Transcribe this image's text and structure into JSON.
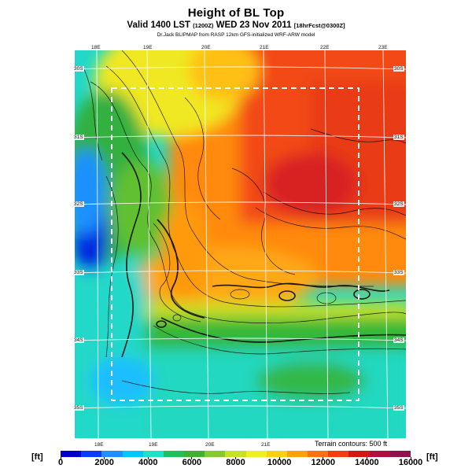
{
  "header": {
    "title": "Height of BL Top",
    "valid_line": "Valid 1400 LST",
    "valid_small": "(1200Z)",
    "valid_date": "WED 23 Nov 2011",
    "forecast_small": "[18hrFcst@0300Z]",
    "model_line": "Dr.Jack BLIPMAP from RASP 12km GFS-initialized WRF-ARW model"
  },
  "axes": {
    "lon_top": [
      "18E",
      "19E",
      "20E",
      "21E",
      "22E",
      "23E"
    ],
    "lon_bottom": [
      "18E",
      "19E",
      "20E",
      "21E"
    ],
    "lat_left": [
      "30S",
      "31S",
      "32S",
      "33S",
      "34S",
      "35S"
    ],
    "lat_right": [
      "30S",
      "31S",
      "32S",
      "33S",
      "34S",
      "35S"
    ]
  },
  "terrain_note": "Terrain contours: 500 ft",
  "colorbar": {
    "unit_left": "[ft]",
    "unit_right": "[ft]",
    "ticks": [
      "0",
      "2000",
      "4000",
      "6000",
      "8000",
      "10000",
      "12000",
      "14000",
      "16000"
    ],
    "colors": [
      "#0000c8",
      "#0a3cff",
      "#1e90ff",
      "#00c8ff",
      "#22e0c8",
      "#20c060",
      "#40b030",
      "#88c830",
      "#c8e028",
      "#f0f020",
      "#ffd010",
      "#ffa010",
      "#ff7010",
      "#f04010",
      "#d01818",
      "#b01040",
      "#901050"
    ]
  }
}
